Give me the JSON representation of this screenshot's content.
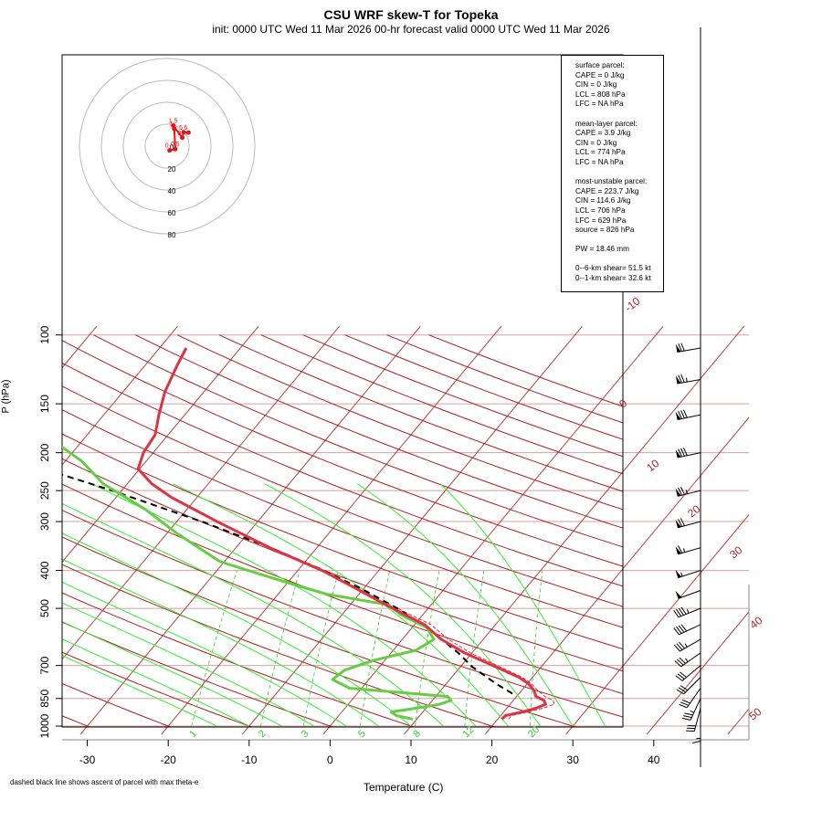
{
  "title": "CSU WRF skew-T for Topeka",
  "subtitle": "init: 0000 UTC Wed 11 Mar 2026     00-hr forecast valid 0000 UTC Wed 11 Mar 2026",
  "footnote": "dashed black line shows ascent of parcel with max theta-e",
  "info_box": {
    "surface_parcel": [
      "surface parcel:",
      "CAPE = 0 J/kg",
      "CIN = 0 J/kg",
      "LCL = 808 hPa",
      "LFC = NA hPa"
    ],
    "mean_layer_parcel": [
      "mean-layer parcel:",
      "CAPE = 3.9 J/kg",
      "CIN = 0 J/kg",
      "LCL = 774 hPa",
      "LFC = NA hPa"
    ],
    "most_unstable_parcel": [
      "most-unstable parcel:",
      "CAPE = 223.7 J/kg",
      "CIN = 114.6 J/kg",
      "LCL = 706 hPa",
      "LFC = 629 hPa",
      "source = 826 hPa"
    ],
    "pw": "PW =  18.46 mm",
    "shear": [
      "0--6-km shear= 51.5 kt",
      "0--1-km shear= 32.6 kt"
    ]
  },
  "chart_data": {
    "type": "line",
    "title": "CSU WRF skew-T for Topeka",
    "xlabel": "Temperature (C)",
    "ylabel": "P (hPa)",
    "x_ticks": [
      "-30",
      "-20",
      "-10",
      "0",
      "10",
      "20",
      "30",
      "40"
    ],
    "x_tick_values": [
      -30,
      -20,
      -10,
      0,
      10,
      20,
      30,
      40
    ],
    "y_ticks": [
      "100",
      "150",
      "200",
      "250",
      "300",
      "400",
      "500",
      "700",
      "850",
      "1000"
    ],
    "y_tick_values": [
      100,
      150,
      200,
      250,
      300,
      400,
      500,
      700,
      850,
      1000
    ],
    "isotherm_labels": [
      "-10",
      "0",
      "10",
      "20",
      "30",
      "40",
      "50"
    ],
    "isotherm_label_values": [
      -10,
      0,
      10,
      20,
      30,
      40,
      50
    ],
    "mixing_ratio_labels": [
      "1",
      "2",
      "3",
      "5",
      "8",
      "12",
      "20"
    ],
    "mixing_ratio_values": [
      1,
      2,
      3,
      5,
      8,
      12,
      20
    ],
    "hodograph_ring_labels": [
      "0",
      "20",
      "40",
      "60",
      "80"
    ],
    "hodograph_ring_values": [
      0,
      20,
      40,
      60,
      80
    ],
    "hodograph_point_labels": [
      "0",
      "0.5",
      "1",
      "1.5",
      "3",
      "5",
      "6"
    ],
    "colors": {
      "temperature": "#dd3344",
      "dewpoint": "#66cc44",
      "parcel": "#000000",
      "virtual_temperature": "#dd3344",
      "isotherm": "#aa2222",
      "dry_adiabat": "#aa2222",
      "moist_adiabat": "#33ee33",
      "mixing_ratio": "#33cc33",
      "isobar": "#d8a0a0",
      "hodograph": "#ee1111"
    },
    "series": [
      {
        "name": "temperature",
        "p": [
          960,
          940,
          920,
          900,
          880,
          860,
          840,
          810,
          780,
          750,
          700,
          650,
          600,
          550,
          500,
          450,
          400,
          350,
          300,
          260,
          240,
          220,
          200,
          180,
          160,
          140,
          120,
          108
        ],
        "t": [
          20.5,
          20.6,
          22.3,
          23.6,
          24.4,
          23.8,
          22.4,
          21.5,
          20.2,
          18.3,
          13.9,
          9.1,
          4.8,
          1.2,
          -4.4,
          -10.3,
          -17,
          -25.8,
          -35,
          -43.2,
          -47,
          -50.2,
          -51.2,
          -51.6,
          -53.2,
          -54.8,
          -56,
          -56.7
        ]
      },
      {
        "name": "dewpoint",
        "p": [
          960,
          940,
          920,
          900,
          880,
          860,
          840,
          800,
          760,
          720,
          680,
          640,
          600,
          560,
          520,
          490,
          460,
          430,
          380,
          320,
          280,
          240,
          210,
          185,
          160
        ],
        "t": [
          9.5,
          7.1,
          6.1,
          8.8,
          11.3,
          12.3,
          11.5,
          -1.5,
          -4.5,
          -4,
          -1.5,
          2.8,
          3.9,
          1.8,
          -2.6,
          -5.2,
          -14,
          -20,
          -30.5,
          -39,
          -45,
          -53,
          -58,
          -64,
          -69
        ]
      },
      {
        "name": "parcel",
        "p": [
          826,
          780,
          706,
          650,
          600,
          550,
          500,
          450,
          400,
          350,
          300,
          250,
          200,
          150,
          110
        ],
        "t": [
          19.2,
          16.2,
          11.5,
          8.3,
          4.9,
          0.9,
          -3.8,
          -9.7,
          -16.8,
          -25.7,
          -36.9,
          -51.2,
          -69.8,
          -94.5,
          -122.4
        ]
      }
    ],
    "hodograph": {
      "labels": [
        "0",
        "0.5",
        "1",
        "1.5",
        "3",
        "5",
        "6"
      ],
      "u_kt": [
        -1.9,
        3.3,
        2.3,
        1.5,
        9.6,
        10.9,
        15.3
      ],
      "v_kt": [
        -3.9,
        -2.7,
        15.9,
        18.7,
        7.7,
        12.7,
        12.4
      ]
    },
    "wind_barbs": [
      {
        "p": 108,
        "speed_kt": 70,
        "dir_deg": 260
      },
      {
        "p": 130,
        "speed_kt": 75,
        "dir_deg": 260
      },
      {
        "p": 160,
        "speed_kt": 80,
        "dir_deg": 258
      },
      {
        "p": 200,
        "speed_kt": 80,
        "dir_deg": 258
      },
      {
        "p": 250,
        "speed_kt": 75,
        "dir_deg": 256
      },
      {
        "p": 300,
        "speed_kt": 70,
        "dir_deg": 255
      },
      {
        "p": 350,
        "speed_kt": 65,
        "dir_deg": 254
      },
      {
        "p": 400,
        "speed_kt": 55,
        "dir_deg": 252
      },
      {
        "p": 450,
        "speed_kt": 50,
        "dir_deg": 250
      },
      {
        "p": 500,
        "speed_kt": 45,
        "dir_deg": 248
      },
      {
        "p": 550,
        "speed_kt": 40,
        "dir_deg": 245
      },
      {
        "p": 600,
        "speed_kt": 35,
        "dir_deg": 240
      },
      {
        "p": 650,
        "speed_kt": 35,
        "dir_deg": 235
      },
      {
        "p": 700,
        "speed_kt": 30,
        "dir_deg": 230
      },
      {
        "p": 750,
        "speed_kt": 30,
        "dir_deg": 225
      },
      {
        "p": 800,
        "speed_kt": 30,
        "dir_deg": 215
      },
      {
        "p": 850,
        "speed_kt": 35,
        "dir_deg": 205
      },
      {
        "p": 900,
        "speed_kt": 30,
        "dir_deg": 195
      },
      {
        "p": 950,
        "speed_kt": 15,
        "dir_deg": 180
      }
    ]
  }
}
